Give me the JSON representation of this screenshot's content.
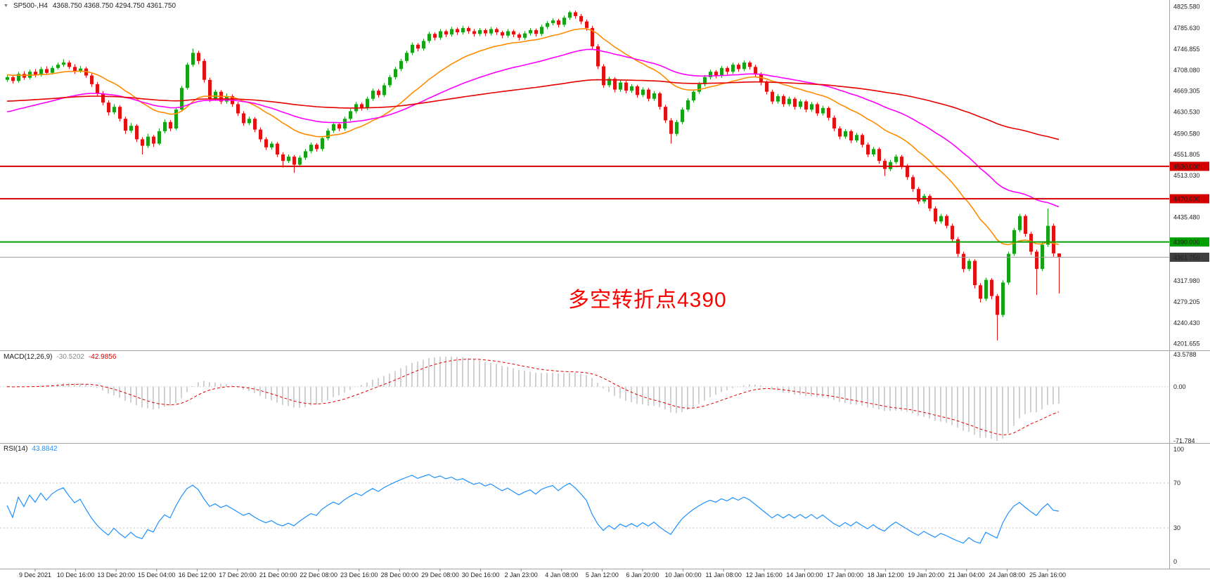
{
  "header": {
    "symbol": "SP500-,H4",
    "quotes": "4368.750 4368.750 4294.750 4361.750"
  },
  "annotation": {
    "text": "多空转折点4390",
    "color": "#ff0000"
  },
  "indicators": {
    "macd_label": "MACD(12,26,9)",
    "macd_main": "-30.5202",
    "macd_signal": "-42.9856",
    "rsi_label": "RSI(14)",
    "rsi_value": "43.8842"
  },
  "chart_data": {
    "type": "candlestick",
    "symbol": "SP500-",
    "timeframe": "H4",
    "colors": {
      "up": "#17a317",
      "down": "#e31212",
      "hist": "#c4c4c4",
      "signal": "#e00000",
      "rsi": "#1e90ff"
    },
    "price_axis": {
      "min": 4196,
      "max": 4830,
      "ticks": [
        {
          "v": 4825.58,
          "label": "4825.580"
        },
        {
          "v": 4785.63,
          "label": "4785.630"
        },
        {
          "v": 4746.855,
          "label": "4746.855"
        },
        {
          "v": 4708.08,
          "label": "4708.080"
        },
        {
          "v": 4669.305,
          "label": "4669.305"
        },
        {
          "v": 4630.53,
          "label": "4630.530"
        },
        {
          "v": 4590.58,
          "label": "4590.580"
        },
        {
          "v": 4551.805,
          "label": "4551.805"
        },
        {
          "v": 4513.03,
          "label": "4513.030"
        },
        {
          "v": 4435.48,
          "label": "4435.480"
        },
        {
          "v": 4317.98,
          "label": "4317.980"
        },
        {
          "v": 4279.205,
          "label": "4279.205"
        },
        {
          "v": 4240.43,
          "label": "4240.430"
        },
        {
          "v": 4201.655,
          "label": "4201.655"
        }
      ]
    },
    "hlines": [
      {
        "price": 4530,
        "label": "4530.000",
        "color": "#d40000",
        "width": 2
      },
      {
        "price": 4470,
        "label": "4470.000",
        "color": "#d40000",
        "width": 2
      },
      {
        "price": 4390,
        "label": "4390.000",
        "color": "#00a000",
        "width": 2
      }
    ],
    "current_price": {
      "value": 4361.75,
      "label": "4361.750",
      "box_color": "#3f3f3f"
    },
    "overlays": [
      {
        "name": "ma-fast-orange",
        "period": 20,
        "seed": 4700,
        "color": "#ff8c00"
      },
      {
        "name": "ma-mid-magenta",
        "period": 48,
        "seed": 4628,
        "color": "#ff00ff"
      },
      {
        "name": "ma-slow-red",
        "period": 160,
        "seed": 4650,
        "color": "#e60000"
      }
    ],
    "macd": {
      "params": [
        12,
        26,
        9
      ],
      "axis_max": 43.5788,
      "axis_min": -71.784,
      "axis_max_label": "43.5788",
      "axis_zero_label": "0.00",
      "axis_min_label": "-71.784"
    },
    "rsi": {
      "period": 14,
      "levels": [
        70,
        30
      ],
      "axis_labels": [
        {
          "v": 100,
          "label": "100"
        },
        {
          "v": 70,
          "label": "70"
        },
        {
          "v": 30,
          "label": "30"
        },
        {
          "v": 0,
          "label": "0"
        }
      ]
    },
    "time_labels": [
      "9 Dec 2021",
      "10 Dec 16:00",
      "13 Dec 20:00",
      "15 Dec 04:00",
      "16 Dec 12:00",
      "17 Dec 20:00",
      "21 Dec 00:00",
      "22 Dec 08:00",
      "23 Dec 16:00",
      "28 Dec 00:00",
      "29 Dec 08:00",
      "30 Dec 16:00",
      "2 Jan 23:00",
      "4 Jan 08:00",
      "5 Jan 12:00",
      "6 Jan 20:00",
      "10 Jan 00:00",
      "11 Jan 08:00",
      "12 Jan 16:00",
      "14 Jan 00:00",
      "17 Jan 00:00",
      "18 Jan 12:00",
      "19 Jan 20:00",
      "21 Jan 04:00",
      "24 Jan 08:00",
      "25 Jan 16:00"
    ],
    "candles": [
      [
        4690,
        4699,
        4686,
        4695
      ],
      [
        4695,
        4698,
        4683,
        4688
      ],
      [
        4688,
        4705,
        4685,
        4701
      ],
      [
        4701,
        4706,
        4690,
        4694
      ],
      [
        4694,
        4709,
        4691,
        4705
      ],
      [
        4705,
        4710,
        4695,
        4699
      ],
      [
        4699,
        4714,
        4696,
        4710
      ],
      [
        4710,
        4715,
        4699,
        4703
      ],
      [
        4703,
        4716,
        4700,
        4712
      ],
      [
        4712,
        4722,
        4709,
        4718
      ],
      [
        4718,
        4728,
        4714,
        4722
      ],
      [
        4722,
        4726,
        4710,
        4714
      ],
      [
        4714,
        4719,
        4701,
        4706
      ],
      [
        4706,
        4716,
        4703,
        4711
      ],
      [
        4711,
        4714,
        4694,
        4698
      ],
      [
        4698,
        4702,
        4677,
        4682
      ],
      [
        4682,
        4686,
        4660,
        4665
      ],
      [
        4665,
        4669,
        4643,
        4648
      ],
      [
        4648,
        4652,
        4624,
        4630
      ],
      [
        4630,
        4645,
        4626,
        4640
      ],
      [
        4640,
        4643,
        4613,
        4618
      ],
      [
        4618,
        4622,
        4590,
        4596
      ],
      [
        4596,
        4610,
        4592,
        4605
      ],
      [
        4605,
        4608,
        4575,
        4580
      ],
      [
        4580,
        4584,
        4552,
        4568
      ],
      [
        4568,
        4590,
        4564,
        4585
      ],
      [
        4585,
        4588,
        4566,
        4572
      ],
      [
        4572,
        4600,
        4569,
        4595
      ],
      [
        4595,
        4617,
        4591,
        4612
      ],
      [
        4612,
        4616,
        4595,
        4600
      ],
      [
        4600,
        4639,
        4597,
        4635
      ],
      [
        4635,
        4679,
        4632,
        4675
      ],
      [
        4675,
        4722,
        4672,
        4718
      ],
      [
        4718,
        4748,
        4714,
        4740
      ],
      [
        4740,
        4744,
        4719,
        4725
      ],
      [
        4725,
        4729,
        4685,
        4690
      ],
      [
        4690,
        4694,
        4649,
        4655
      ],
      [
        4655,
        4672,
        4651,
        4668
      ],
      [
        4668,
        4671,
        4645,
        4650
      ],
      [
        4650,
        4665,
        4646,
        4660
      ],
      [
        4660,
        4663,
        4640,
        4645
      ],
      [
        4645,
        4649,
        4623,
        4628
      ],
      [
        4628,
        4632,
        4605,
        4610
      ],
      [
        4610,
        4622,
        4606,
        4618
      ],
      [
        4618,
        4621,
        4593,
        4598
      ],
      [
        4598,
        4602,
        4575,
        4580
      ],
      [
        4580,
        4584,
        4560,
        4565
      ],
      [
        4565,
        4576,
        4561,
        4572
      ],
      [
        4572,
        4575,
        4547,
        4552
      ],
      [
        4552,
        4556,
        4528,
        4540
      ],
      [
        4540,
        4552,
        4536,
        4548
      ],
      [
        4548,
        4551,
        4518,
        4533
      ],
      [
        4533,
        4550,
        4529,
        4546
      ],
      [
        4546,
        4562,
        4542,
        4558
      ],
      [
        4558,
        4574,
        4554,
        4570
      ],
      [
        4570,
        4573,
        4557,
        4562
      ],
      [
        4562,
        4586,
        4558,
        4582
      ],
      [
        4582,
        4600,
        4578,
        4596
      ],
      [
        4596,
        4612,
        4592,
        4608
      ],
      [
        4608,
        4611,
        4595,
        4600
      ],
      [
        4600,
        4622,
        4596,
        4618
      ],
      [
        4618,
        4636,
        4614,
        4632
      ],
      [
        4632,
        4649,
        4628,
        4645
      ],
      [
        4645,
        4648,
        4633,
        4638
      ],
      [
        4638,
        4659,
        4634,
        4655
      ],
      [
        4655,
        4674,
        4651,
        4670
      ],
      [
        4670,
        4673,
        4657,
        4662
      ],
      [
        4662,
        4684,
        4658,
        4680
      ],
      [
        4680,
        4699,
        4676,
        4695
      ],
      [
        4695,
        4714,
        4691,
        4710
      ],
      [
        4710,
        4729,
        4706,
        4725
      ],
      [
        4725,
        4744,
        4721,
        4740
      ],
      [
        4740,
        4759,
        4736,
        4755
      ],
      [
        4755,
        4758,
        4743,
        4748
      ],
      [
        4748,
        4766,
        4744,
        4762
      ],
      [
        4762,
        4779,
        4758,
        4775
      ],
      [
        4775,
        4778,
        4763,
        4768
      ],
      [
        4768,
        4784,
        4764,
        4780
      ],
      [
        4780,
        4783,
        4769,
        4774
      ],
      [
        4774,
        4788,
        4770,
        4784
      ],
      [
        4784,
        4787,
        4773,
        4778
      ],
      [
        4778,
        4790,
        4774,
        4786
      ],
      [
        4786,
        4789,
        4775,
        4780
      ],
      [
        4780,
        4784,
        4770,
        4775
      ],
      [
        4775,
        4786,
        4771,
        4782
      ],
      [
        4782,
        4785,
        4771,
        4776
      ],
      [
        4776,
        4788,
        4772,
        4784
      ],
      [
        4784,
        4787,
        4773,
        4778
      ],
      [
        4778,
        4781,
        4767,
        4772
      ],
      [
        4772,
        4784,
        4768,
        4780
      ],
      [
        4780,
        4783,
        4769,
        4774
      ],
      [
        4774,
        4777,
        4763,
        4768
      ],
      [
        4768,
        4780,
        4764,
        4776
      ],
      [
        4776,
        4786,
        4772,
        4782
      ],
      [
        4782,
        4785,
        4770,
        4775
      ],
      [
        4775,
        4792,
        4771,
        4788
      ],
      [
        4788,
        4799,
        4784,
        4795
      ],
      [
        4795,
        4804,
        4791,
        4800
      ],
      [
        4800,
        4803,
        4787,
        4792
      ],
      [
        4792,
        4809,
        4788,
        4805
      ],
      [
        4805,
        4818,
        4801,
        4815
      ],
      [
        4815,
        4818,
        4803,
        4808
      ],
      [
        4808,
        4812,
        4793,
        4798
      ],
      [
        4798,
        4802,
        4781,
        4786
      ],
      [
        4786,
        4790,
        4747,
        4752
      ],
      [
        4752,
        4756,
        4710,
        4715
      ],
      [
        4715,
        4719,
        4675,
        4680
      ],
      [
        4680,
        4696,
        4676,
        4692
      ],
      [
        4692,
        4695,
        4667,
        4672
      ],
      [
        4672,
        4689,
        4668,
        4685
      ],
      [
        4685,
        4688,
        4665,
        4670
      ],
      [
        4670,
        4682,
        4666,
        4678
      ],
      [
        4678,
        4681,
        4657,
        4662
      ],
      [
        4662,
        4676,
        4658,
        4672
      ],
      [
        4672,
        4675,
        4650,
        4655
      ],
      [
        4655,
        4669,
        4651,
        4665
      ],
      [
        4665,
        4668,
        4635,
        4640
      ],
      [
        4640,
        4644,
        4610,
        4615
      ],
      [
        4615,
        4619,
        4572,
        4590
      ],
      [
        4590,
        4616,
        4586,
        4612
      ],
      [
        4612,
        4639,
        4608,
        4635
      ],
      [
        4635,
        4656,
        4631,
        4652
      ],
      [
        4652,
        4672,
        4648,
        4668
      ],
      [
        4668,
        4686,
        4664,
        4682
      ],
      [
        4682,
        4699,
        4678,
        4695
      ],
      [
        4695,
        4709,
        4691,
        4705
      ],
      [
        4705,
        4708,
        4693,
        4698
      ],
      [
        4698,
        4716,
        4694,
        4712
      ],
      [
        4712,
        4715,
        4700,
        4705
      ],
      [
        4705,
        4722,
        4701,
        4718
      ],
      [
        4718,
        4721,
        4705,
        4710
      ],
      [
        4710,
        4726,
        4706,
        4722
      ],
      [
        4722,
        4725,
        4709,
        4714
      ],
      [
        4714,
        4718,
        4695,
        4700
      ],
      [
        4700,
        4704,
        4680,
        4685
      ],
      [
        4685,
        4689,
        4663,
        4668
      ],
      [
        4668,
        4672,
        4645,
        4650
      ],
      [
        4650,
        4664,
        4646,
        4660
      ],
      [
        4660,
        4663,
        4640,
        4645
      ],
      [
        4645,
        4659,
        4641,
        4655
      ],
      [
        4655,
        4658,
        4635,
        4640
      ],
      [
        4640,
        4654,
        4636,
        4650
      ],
      [
        4650,
        4653,
        4630,
        4635
      ],
      [
        4635,
        4649,
        4631,
        4645
      ],
      [
        4645,
        4648,
        4623,
        4628
      ],
      [
        4628,
        4642,
        4624,
        4638
      ],
      [
        4638,
        4641,
        4615,
        4620
      ],
      [
        4620,
        4624,
        4595,
        4600
      ],
      [
        4600,
        4604,
        4580,
        4585
      ],
      [
        4585,
        4599,
        4581,
        4595
      ],
      [
        4595,
        4598,
        4573,
        4578
      ],
      [
        4578,
        4592,
        4574,
        4588
      ],
      [
        4588,
        4591,
        4565,
        4570
      ],
      [
        4570,
        4574,
        4547,
        4552
      ],
      [
        4552,
        4566,
        4548,
        4562
      ],
      [
        4562,
        4565,
        4535,
        4540
      ],
      [
        4540,
        4544,
        4512,
        4525
      ],
      [
        4525,
        4542,
        4521,
        4538
      ],
      [
        4538,
        4552,
        4534,
        4548
      ],
      [
        4548,
        4551,
        4525,
        4530
      ],
      [
        4530,
        4534,
        4505,
        4510
      ],
      [
        4510,
        4514,
        4483,
        4488
      ],
      [
        4488,
        4492,
        4460,
        4465
      ],
      [
        4465,
        4479,
        4461,
        4475
      ],
      [
        4475,
        4478,
        4447,
        4452
      ],
      [
        4452,
        4456,
        4423,
        4428
      ],
      [
        4428,
        4442,
        4424,
        4438
      ],
      [
        4438,
        4441,
        4415,
        4420
      ],
      [
        4420,
        4424,
        4390,
        4395
      ],
      [
        4395,
        4399,
        4362,
        4368
      ],
      [
        4368,
        4372,
        4334,
        4340
      ],
      [
        4340,
        4359,
        4336,
        4355
      ],
      [
        4355,
        4358,
        4304,
        4310
      ],
      [
        4310,
        4314,
        4278,
        4285
      ],
      [
        4285,
        4324,
        4281,
        4320
      ],
      [
        4320,
        4323,
        4284,
        4290
      ],
      [
        4290,
        4294,
        4208,
        4255
      ],
      [
        4255,
        4319,
        4251,
        4315
      ],
      [
        4315,
        4372,
        4311,
        4368
      ],
      [
        4368,
        4416,
        4364,
        4412
      ],
      [
        4412,
        4442,
        4408,
        4438
      ],
      [
        4438,
        4441,
        4400,
        4405
      ],
      [
        4405,
        4409,
        4366,
        4372
      ],
      [
        4372,
        4376,
        4292,
        4340
      ],
      [
        4340,
        4389,
        4336,
        4385
      ],
      [
        4385,
        4452,
        4381,
        4420
      ],
      [
        4420,
        4424,
        4363,
        4369
      ],
      [
        4368.75,
        4368.75,
        4294.75,
        4361.75
      ]
    ]
  }
}
